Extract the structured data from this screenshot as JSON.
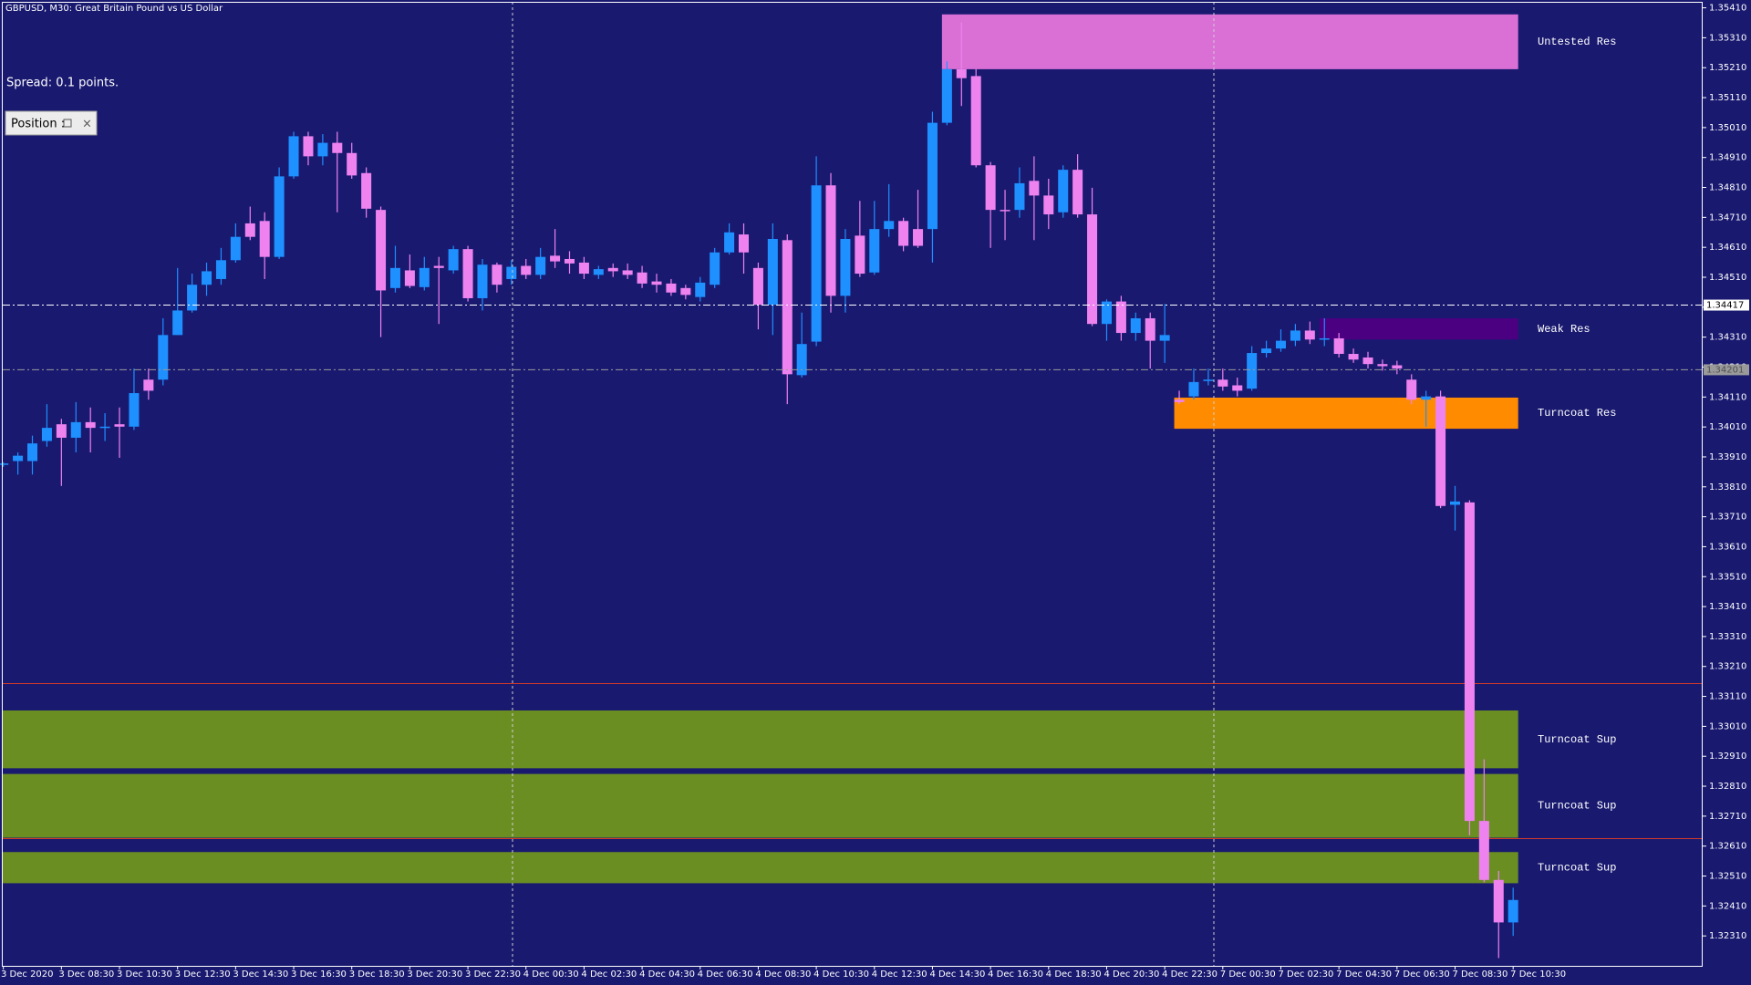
{
  "chart_data": {
    "type": "candlestick",
    "title": "GBPUSD, M30:  Great Britain Pound vs US Dollar",
    "annotations": [
      "Spread: 0.1 points.",
      "Position :"
    ],
    "bull_color": "#1e90ff",
    "bear_color": "#ee82ee",
    "background": "#191970",
    "categories": [
      "3 Dec 2020",
      null,
      null,
      null,
      "3 Dec 08:30",
      null,
      null,
      null,
      "3 Dec 10:30",
      null,
      null,
      null,
      "3 Dec 12:30",
      null,
      null,
      null,
      "3 Dec 14:30",
      null,
      null,
      null,
      "3 Dec 16:30",
      null,
      null,
      null,
      "3 Dec 18:30",
      null,
      null,
      null,
      "3 Dec 20:30",
      null,
      null,
      null,
      "3 Dec 22:30",
      null,
      null,
      null,
      "4 Dec 00:30",
      null,
      null,
      null,
      "4 Dec 02:30",
      null,
      null,
      null,
      "4 Dec 04:30",
      null,
      null,
      null,
      "4 Dec 06:30",
      null,
      null,
      null,
      "4 Dec 08:30",
      null,
      null,
      null,
      "4 Dec 10:30",
      null,
      null,
      null,
      "4 Dec 12:30",
      null,
      null,
      null,
      "4 Dec 14:30",
      null,
      null,
      null,
      "4 Dec 16:30",
      null,
      null,
      null,
      "4 Dec 18:30",
      null,
      null,
      null,
      "4 Dec 20:30",
      null,
      null,
      null,
      "4 Dec 22:30",
      null,
      null,
      null,
      "7 Dec 00:30",
      null,
      null,
      null,
      "7 Dec 02:30",
      null,
      null,
      null,
      "7 Dec 04:30",
      null,
      null,
      null,
      "7 Dec 06:30",
      null,
      null,
      null,
      "7 Dec 08:30",
      null,
      null,
      null,
      "7 Dec 10:30"
    ],
    "open": [
      1.33884,
      1.33896,
      1.33896,
      1.33963,
      1.34019,
      1.33974,
      1.34026,
      1.34011,
      1.34019,
      1.34011,
      1.34168,
      1.34168,
      1.34317,
      1.34399,
      1.34485,
      1.34504,
      1.34567,
      1.3469,
      1.34698,
      1.34578,
      1.34847,
      1.34981,
      1.34914,
      1.34959,
      1.34925,
      1.34858,
      1.34735,
      1.34474,
      1.34533,
      1.34477,
      1.34548,
      1.34533,
      1.34604,
      1.3444,
      1.34552,
      1.34504,
      1.34548,
      1.34518,
      1.34582,
      1.34571,
      1.34559,
      1.34518,
      1.34541,
      1.34533,
      1.34526,
      1.34496,
      1.34489,
      1.34474,
      1.34444,
      1.34485,
      1.34593,
      1.34653,
      1.34541,
      1.34418,
      1.34634,
      1.34183,
      1.34295,
      1.34817,
      1.34448,
      1.34649,
      1.34526,
      1.34671,
      1.34698,
      1.34671,
      1.34671,
      1.35026,
      1.35205,
      1.35182,
      1.34884,
      1.34735,
      1.34735,
      1.34832,
      1.34783,
      1.34727,
      1.34869,
      1.3472,
      1.34354,
      1.34429,
      1.34324,
      1.34373,
      1.34298,
      1.34101,
      1.34112,
      1.34168,
      1.34168,
      1.34149,
      1.34138,
      1.34257,
      1.34272,
      1.34298,
      1.34332,
      1.34306,
      1.34306,
      1.34254,
      1.34242,
      1.3422,
      1.34216,
      1.34168,
      1.34101,
      1.34112,
      1.3375,
      1.33758,
      1.32694,
      1.32497,
      1.32355
    ],
    "high": [
      1.33892,
      1.33925,
      1.33981,
      1.34086,
      1.34037,
      1.34093,
      1.34075,
      1.34056,
      1.34075,
      1.34205,
      1.34205,
      1.34373,
      1.34541,
      1.34522,
      1.34559,
      1.34608,
      1.3469,
      1.34746,
      1.34727,
      1.34877,
      1.34996,
      1.34996,
      1.34988,
      1.34996,
      1.34959,
      1.34877,
      1.34746,
      1.34615,
      1.34586,
      1.34578,
      1.34578,
      1.34615,
      1.34615,
      1.34571,
      1.34559,
      1.34567,
      1.34571,
      1.34608,
      1.34671,
      1.34597,
      1.34578,
      1.34548,
      1.34556,
      1.34556,
      1.34548,
      1.34522,
      1.34504,
      1.34485,
      1.34511,
      1.34608,
      1.3469,
      1.3469,
      1.34559,
      1.3469,
      1.34653,
      1.34392,
      1.34914,
      1.34858,
      1.34671,
      1.34765,
      1.34765,
      1.34821,
      1.34709,
      1.34802,
      1.35063,
      1.35231,
      1.35361,
      1.35205,
      1.34895,
      1.34802,
      1.34877,
      1.34914,
      1.34839,
      1.34884,
      1.34921,
      1.34809,
      1.34436,
      1.34448,
      1.34392,
      1.34392,
      1.34421,
      1.34131,
      1.34205,
      1.34205,
      1.34205,
      1.34175,
      1.3428,
      1.34298,
      1.34336,
      1.34354,
      1.34362,
      1.34373,
      1.34324,
      1.34272,
      1.34261,
      1.34235,
      1.34231,
      1.34186,
      1.34131,
      1.34131,
      1.33813,
      1.33765,
      1.329,
      1.32527,
      1.32471
    ],
    "low": [
      1.33877,
      1.33851,
      1.33851,
      1.33944,
      1.33813,
      1.33925,
      1.33925,
      1.33963,
      1.33907,
      1.34,
      1.34101,
      1.34149,
      1.34317,
      1.34392,
      1.34448,
      1.34485,
      1.34559,
      1.34634,
      1.34504,
      1.34571,
      1.34839,
      1.34884,
      1.34884,
      1.34727,
      1.34839,
      1.34709,
      1.3431,
      1.34459,
      1.34474,
      1.34466,
      1.34354,
      1.34522,
      1.34429,
      1.34399,
      1.34459,
      1.34485,
      1.34504,
      1.34504,
      1.34541,
      1.34522,
      1.34504,
      1.34504,
      1.34511,
      1.34504,
      1.34474,
      1.34459,
      1.34448,
      1.34436,
      1.34429,
      1.34474,
      1.34586,
      1.34522,
      1.34336,
      1.34317,
      1.34086,
      1.34175,
      1.3428,
      1.34392,
      1.34392,
      1.34511,
      1.34518,
      1.34645,
      1.34597,
      1.34608,
      1.34559,
      1.35018,
      1.35082,
      1.34877,
      1.34608,
      1.34634,
      1.34709,
      1.34634,
      1.34671,
      1.34709,
      1.34709,
      1.34347,
      1.34298,
      1.34298,
      1.34298,
      1.34205,
      1.34224,
      1.34086,
      1.34101,
      1.34149,
      1.34131,
      1.34112,
      1.34131,
      1.34242,
      1.34261,
      1.3428,
      1.34287,
      1.3428,
      1.34242,
      1.34224,
      1.34205,
      1.34198,
      1.34186,
      1.34086,
      1.34011,
      1.33739,
      1.33664,
      1.32646,
      1.32489,
      1.32236,
      1.3231
    ],
    "close": [
      1.33888,
      1.33914,
      1.33955,
      1.34007,
      1.33974,
      1.34026,
      1.34007,
      1.34011,
      1.34011,
      1.34123,
      1.34131,
      1.34317,
      1.34399,
      1.34485,
      1.3453,
      1.34567,
      1.34645,
      1.34645,
      1.34578,
      1.34847,
      1.34981,
      1.34914,
      1.34959,
      1.34925,
      1.3485,
      1.34739,
      1.34466,
      1.34541,
      1.34481,
      1.34541,
      1.34541,
      1.34604,
      1.3444,
      1.34552,
      1.34485,
      1.34545,
      1.34518,
      1.34578,
      1.34563,
      1.34556,
      1.34522,
      1.34537,
      1.3453,
      1.34518,
      1.34489,
      1.34485,
      1.34459,
      1.34451,
      1.34492,
      1.34593,
      1.3466,
      1.34593,
      1.34418,
      1.34638,
      1.34186,
      1.34287,
      1.34817,
      1.34448,
      1.34638,
      1.34522,
      1.34671,
      1.34698,
      1.34615,
      1.34615,
      1.35026,
      1.35205,
      1.35175,
      1.34884,
      1.34735,
      1.34731,
      1.34824,
      1.34783,
      1.3472,
      1.34869,
      1.3472,
      1.34354,
      1.34429,
      1.34324,
      1.34373,
      1.34298,
      1.34317,
      1.34093,
      1.3416,
      1.34168,
      1.34145,
      1.34131,
      1.34257,
      1.34272,
      1.34298,
      1.34332,
      1.34302,
      1.34306,
      1.34254,
      1.34235,
      1.3422,
      1.34213,
      1.34205,
      1.34101,
      1.34112,
      1.33746,
      1.33761,
      1.32694,
      1.32497,
      1.32355,
      1.3243
    ],
    "zones": [
      {
        "label": "Untested Res",
        "color": "#da70d6",
        "top": 1.35388,
        "bottom": 1.35205,
        "from": 65
      },
      {
        "label": "Weak Res",
        "color": "#4b0082",
        "top": 1.34373,
        "bottom": 1.34302,
        "from": 91
      },
      {
        "label": "Turncoat Res",
        "color": "#ff8c00",
        "top": 1.34108,
        "bottom": 1.34004,
        "from": 81
      },
      {
        "label": "Turncoat Sup",
        "color": "#6b8e23",
        "top": 1.33063,
        "bottom": 1.3287,
        "from": 0
      },
      {
        "label": "Turncoat Sup",
        "color": "#6b8e23",
        "top": 1.32851,
        "bottom": 1.32638,
        "from": 0
      },
      {
        "label": "Turncoat Sup",
        "color": "#6b8e23",
        "top": 1.3259,
        "bottom": 1.32486,
        "from": 0
      }
    ],
    "price_lines": [
      {
        "value": 1.34417,
        "color": "#ffffff",
        "text_color": "#000000"
      },
      {
        "value": 1.34201,
        "color": "#9a9a9a",
        "text_color": "#505050"
      }
    ],
    "levels": [
      {
        "value": 1.33153,
        "color": "#d03a2a"
      },
      {
        "value": 1.32635,
        "color": "#d03a2a"
      }
    ],
    "ylim": [
      1.3221,
      1.3543
    ],
    "yticks": [
      {
        "value": 1.3541,
        "label": "1.35410"
      },
      {
        "value": 1.3531,
        "label": "1.35310"
      },
      {
        "value": 1.3521,
        "label": "1.35210"
      },
      {
        "value": 1.3511,
        "label": "1.35110"
      },
      {
        "value": 1.3501,
        "label": "1.35010"
      },
      {
        "value": 1.3491,
        "label": "1.34910"
      },
      {
        "value": 1.3481,
        "label": "1.34810"
      },
      {
        "value": 1.3471,
        "label": "1.34710"
      },
      {
        "value": 1.3461,
        "label": "1.34610"
      },
      {
        "value": 1.3451,
        "label": "1.34510"
      },
      {
        "value": 1.3441,
        "label": "1.34410"
      },
      {
        "value": 1.3431,
        "label": "1.34310"
      },
      {
        "value": 1.3421,
        "label": "1.34210"
      },
      {
        "value": 1.3411,
        "label": "1.34110"
      },
      {
        "value": 1.3401,
        "label": "1.34010"
      },
      {
        "value": 1.3391,
        "label": "1.33910"
      },
      {
        "value": 1.3381,
        "label": "1.33810"
      },
      {
        "value": 1.3371,
        "label": "1.33710"
      },
      {
        "value": 1.3361,
        "label": "1.33610"
      },
      {
        "value": 1.3351,
        "label": "1.33510"
      },
      {
        "value": 1.3341,
        "label": "1.33410"
      },
      {
        "value": 1.3331,
        "label": "1.33310"
      },
      {
        "value": 1.3321,
        "label": "1.33210"
      },
      {
        "value": 1.3311,
        "label": "1.33110"
      },
      {
        "value": 1.3301,
        "label": "1.33010"
      },
      {
        "value": 1.3291,
        "label": "1.32910"
      },
      {
        "value": 1.3281,
        "label": "1.32810"
      },
      {
        "value": 1.3271,
        "label": "1.32710"
      },
      {
        "value": 1.3261,
        "label": "1.32610"
      },
      {
        "value": 1.3251,
        "label": "1.32510"
      },
      {
        "value": 1.3241,
        "label": "1.32410"
      },
      {
        "value": 1.3231,
        "label": "1.32310"
      }
    ],
    "grid": false
  }
}
